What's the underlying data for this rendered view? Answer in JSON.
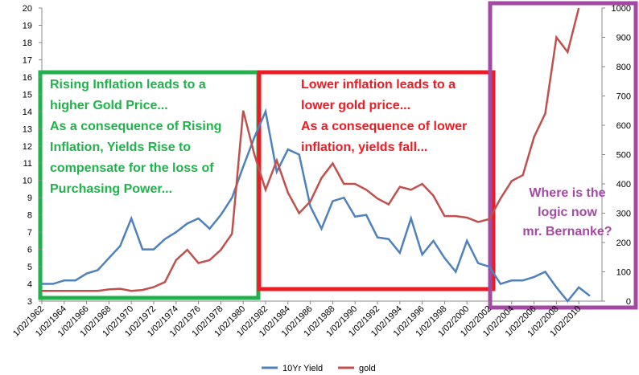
{
  "chart_data": {
    "type": "line",
    "categories": [
      "1/02/1962",
      null,
      "1/02/1964",
      null,
      "1/02/1966",
      null,
      "1/02/1968",
      null,
      "1/02/1970",
      null,
      "1/02/1972",
      null,
      "1/02/1974",
      null,
      "1/02/1976",
      null,
      "1/02/1978",
      null,
      "1/02/1980",
      null,
      "1/02/1982",
      null,
      "1/02/1984",
      null,
      "1/02/1986",
      null,
      "1/02/1988",
      null,
      "1/02/1990",
      null,
      "1/02/1992",
      null,
      "1/02/1994",
      null,
      "1/02/1996",
      null,
      "1/02/1998",
      null,
      "1/02/2000",
      null,
      "1/02/2002",
      null,
      "1/02/2004",
      null,
      "1/02/2006",
      null,
      "1/02/2008",
      null,
      "1/02/2010",
      null
    ],
    "series": [
      {
        "name": "10Yr Yield",
        "color": "#4f81bd",
        "values": [
          4.0,
          4.0,
          4.2,
          4.2,
          4.6,
          4.8,
          5.5,
          6.2,
          7.8,
          6.0,
          6.0,
          6.6,
          7.0,
          7.5,
          7.8,
          7.2,
          8.0,
          9.0,
          10.8,
          12.5,
          14.0,
          10.5,
          11.8,
          11.5,
          8.5,
          7.2,
          8.8,
          9.0,
          7.9,
          8.0,
          6.7,
          6.6,
          5.8,
          7.8,
          5.7,
          6.5,
          5.5,
          4.7,
          6.5,
          5.2,
          5.0,
          4.0,
          4.2,
          4.2,
          4.4,
          4.7,
          3.8,
          3.0,
          3.8,
          3.3
        ]
      },
      {
        "name": "gold",
        "color": "#c0504d",
        "axis": "y2",
        "values": [
          35,
          35,
          35,
          35,
          35,
          35,
          40,
          42,
          35,
          38,
          48,
          65,
          140,
          175,
          130,
          140,
          175,
          230,
          650,
          500,
          380,
          480,
          370,
          300,
          340,
          420,
          470,
          400,
          400,
          380,
          350,
          330,
          390,
          380,
          400,
          360,
          290,
          290,
          285,
          270,
          280,
          350,
          410,
          430,
          560,
          640,
          900,
          850,
          1000,
          null
        ]
      }
    ],
    "ylim": [
      3,
      20
    ],
    "yticks": [
      3,
      4,
      5,
      6,
      7,
      8,
      9,
      10,
      11,
      12,
      13,
      14,
      15,
      16,
      17,
      18,
      19,
      20
    ],
    "y2lim": [
      0,
      1000
    ],
    "y2ticks": [
      0,
      100,
      200,
      300,
      400,
      500,
      600,
      700,
      800,
      900,
      1000
    ],
    "grid": false,
    "legend": "bottom",
    "annotations": [
      {
        "color": "#22b14c",
        "lines": [
          "Rising Inflation leads to a",
          "higher Gold Price...",
          "As a consequence of Rising",
          "Inflation, Yields Rise to",
          "compensate for the loss of",
          "Purchasing Power..."
        ]
      },
      {
        "color": "#ed1c24",
        "lines": [
          "Lower inflation leads to a",
          "lower gold price...",
          "As a consequence of lower",
          "inflation, yields fall..."
        ]
      },
      {
        "color": "#a349a4",
        "lines": [
          "Where is the",
          "logic now",
          "mr. Bernanke?"
        ]
      }
    ]
  }
}
